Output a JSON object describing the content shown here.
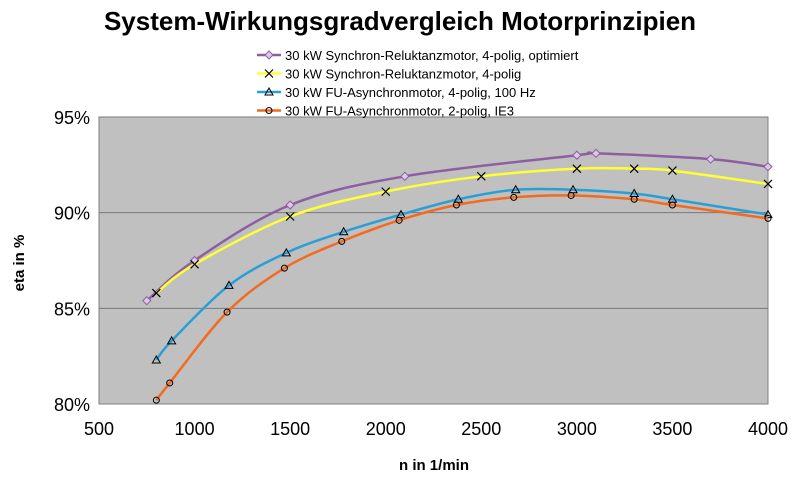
{
  "chart_data": {
    "type": "line",
    "title": "System-Wirkungsgradvergleich Motorprinzipien",
    "xlabel": "n in 1/min",
    "ylabel": "eta in %",
    "xlim": [
      500,
      4000
    ],
    "ylim": [
      80,
      95
    ],
    "xticks": [
      500,
      1000,
      1500,
      2000,
      2500,
      3000,
      3500,
      4000
    ],
    "yticks": [
      80,
      85,
      90,
      95
    ],
    "ytick_labels": [
      "80%",
      "85%",
      "90%",
      "95%"
    ],
    "grid": "horizontal",
    "plot_background": "#c0c0c0",
    "legend_position": "top",
    "series": [
      {
        "name": "30 kW Synchron-Reluktanzmotor, 4-polig, optimiert",
        "color": "#8e5ea2",
        "marker": "diamond",
        "x": [
          750,
          1000,
          1500,
          2100,
          3000,
          3100,
          3700,
          4000
        ],
        "y": [
          85.4,
          87.5,
          90.4,
          91.9,
          93.0,
          93.1,
          92.8,
          92.4
        ]
      },
      {
        "name": "30 kW Synchron-Reluktanzmotor, 4-polig",
        "color": "#ffff33",
        "marker": "x",
        "x": [
          800,
          1000,
          1500,
          2000,
          2500,
          3000,
          3300,
          3500,
          4000
        ],
        "y": [
          85.8,
          87.3,
          89.8,
          91.1,
          91.9,
          92.3,
          92.3,
          92.2,
          91.5
        ]
      },
      {
        "name": "30 kW FU-Asynchronmotor, 4-polig, 100 Hz",
        "color": "#2a9fd6",
        "marker": "triangle",
        "x": [
          800,
          880,
          1180,
          1480,
          1780,
          2080,
          2380,
          2680,
          2980,
          3300,
          3500,
          4000
        ],
        "y": [
          82.3,
          83.3,
          86.2,
          87.9,
          89.0,
          89.9,
          90.7,
          91.2,
          91.2,
          91.0,
          90.7,
          89.9
        ]
      },
      {
        "name": "30 kW FU-Asynchronmotor, 2-polig, IE3",
        "color": "#f26b21",
        "marker": "circle",
        "x": [
          800,
          870,
          1170,
          1470,
          1770,
          2070,
          2370,
          2670,
          2970,
          3300,
          3500,
          4000
        ],
        "y": [
          80.2,
          81.1,
          84.8,
          87.1,
          88.5,
          89.6,
          90.4,
          90.8,
          90.9,
          90.7,
          90.4,
          89.7
        ]
      }
    ]
  }
}
